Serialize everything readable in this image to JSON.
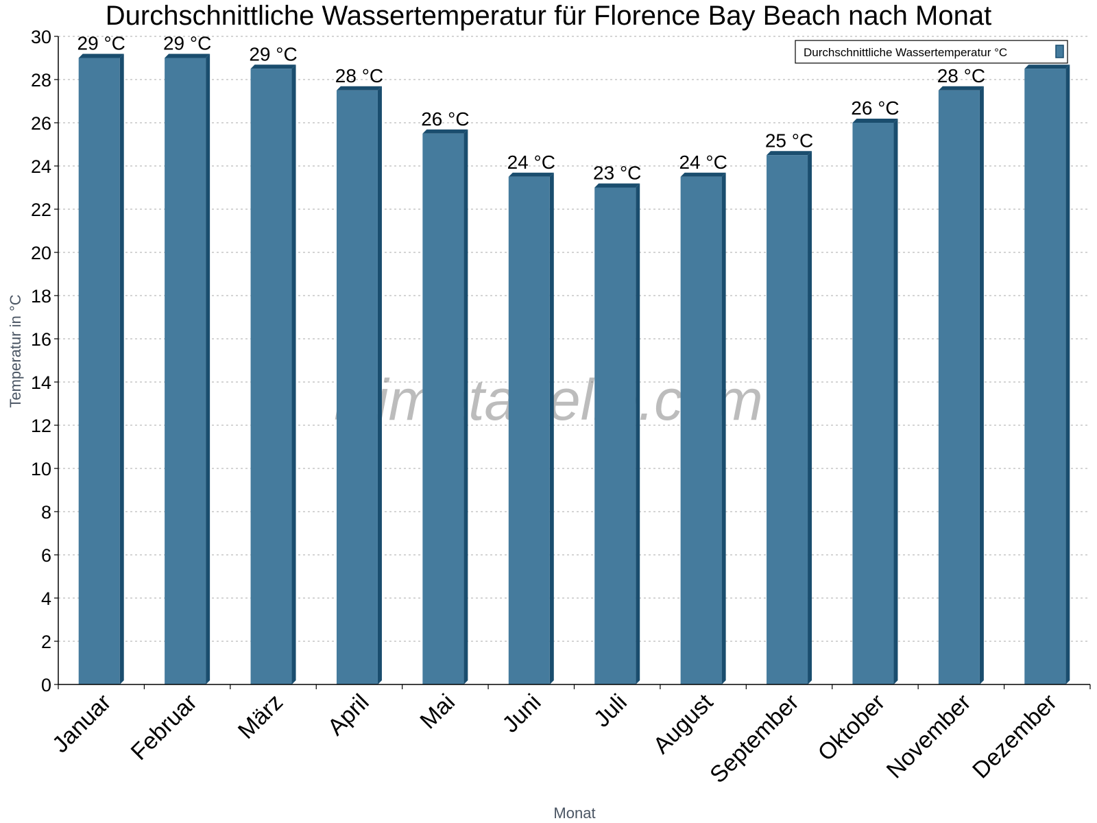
{
  "chart_data": {
    "type": "bar",
    "title": "Durchschnittliche Wassertemperatur für Florence Bay Beach nach Monat",
    "xlabel": "Monat",
    "ylabel": "Temperatur in °C",
    "ylim": [
      0,
      30
    ],
    "yticks": [
      0,
      2,
      4,
      6,
      8,
      10,
      12,
      14,
      16,
      18,
      20,
      22,
      24,
      26,
      28,
      30
    ],
    "grid": true,
    "legend_position": "top-right",
    "categories": [
      "Januar",
      "Februar",
      "März",
      "April",
      "Mai",
      "Juni",
      "Juli",
      "August",
      "September",
      "Oktober",
      "November",
      "Dezember"
    ],
    "series": [
      {
        "name": "Durchschnittliche Wassertemperatur °C",
        "color": "#457b9d",
        "side_color": "#1a4d6e",
        "values": [
          29,
          29,
          28.5,
          27.5,
          25.5,
          23.5,
          23,
          23.5,
          24.5,
          26,
          27.5,
          28.5
        ],
        "labels": [
          "29 °C",
          "29 °C",
          "29 °C",
          "28 °C",
          "26 °C",
          "24 °C",
          "23 °C",
          "24 °C",
          "25 °C",
          "26 °C",
          "28 °C",
          ""
        ]
      }
    ],
    "watermark": "klimatabelle.com"
  }
}
